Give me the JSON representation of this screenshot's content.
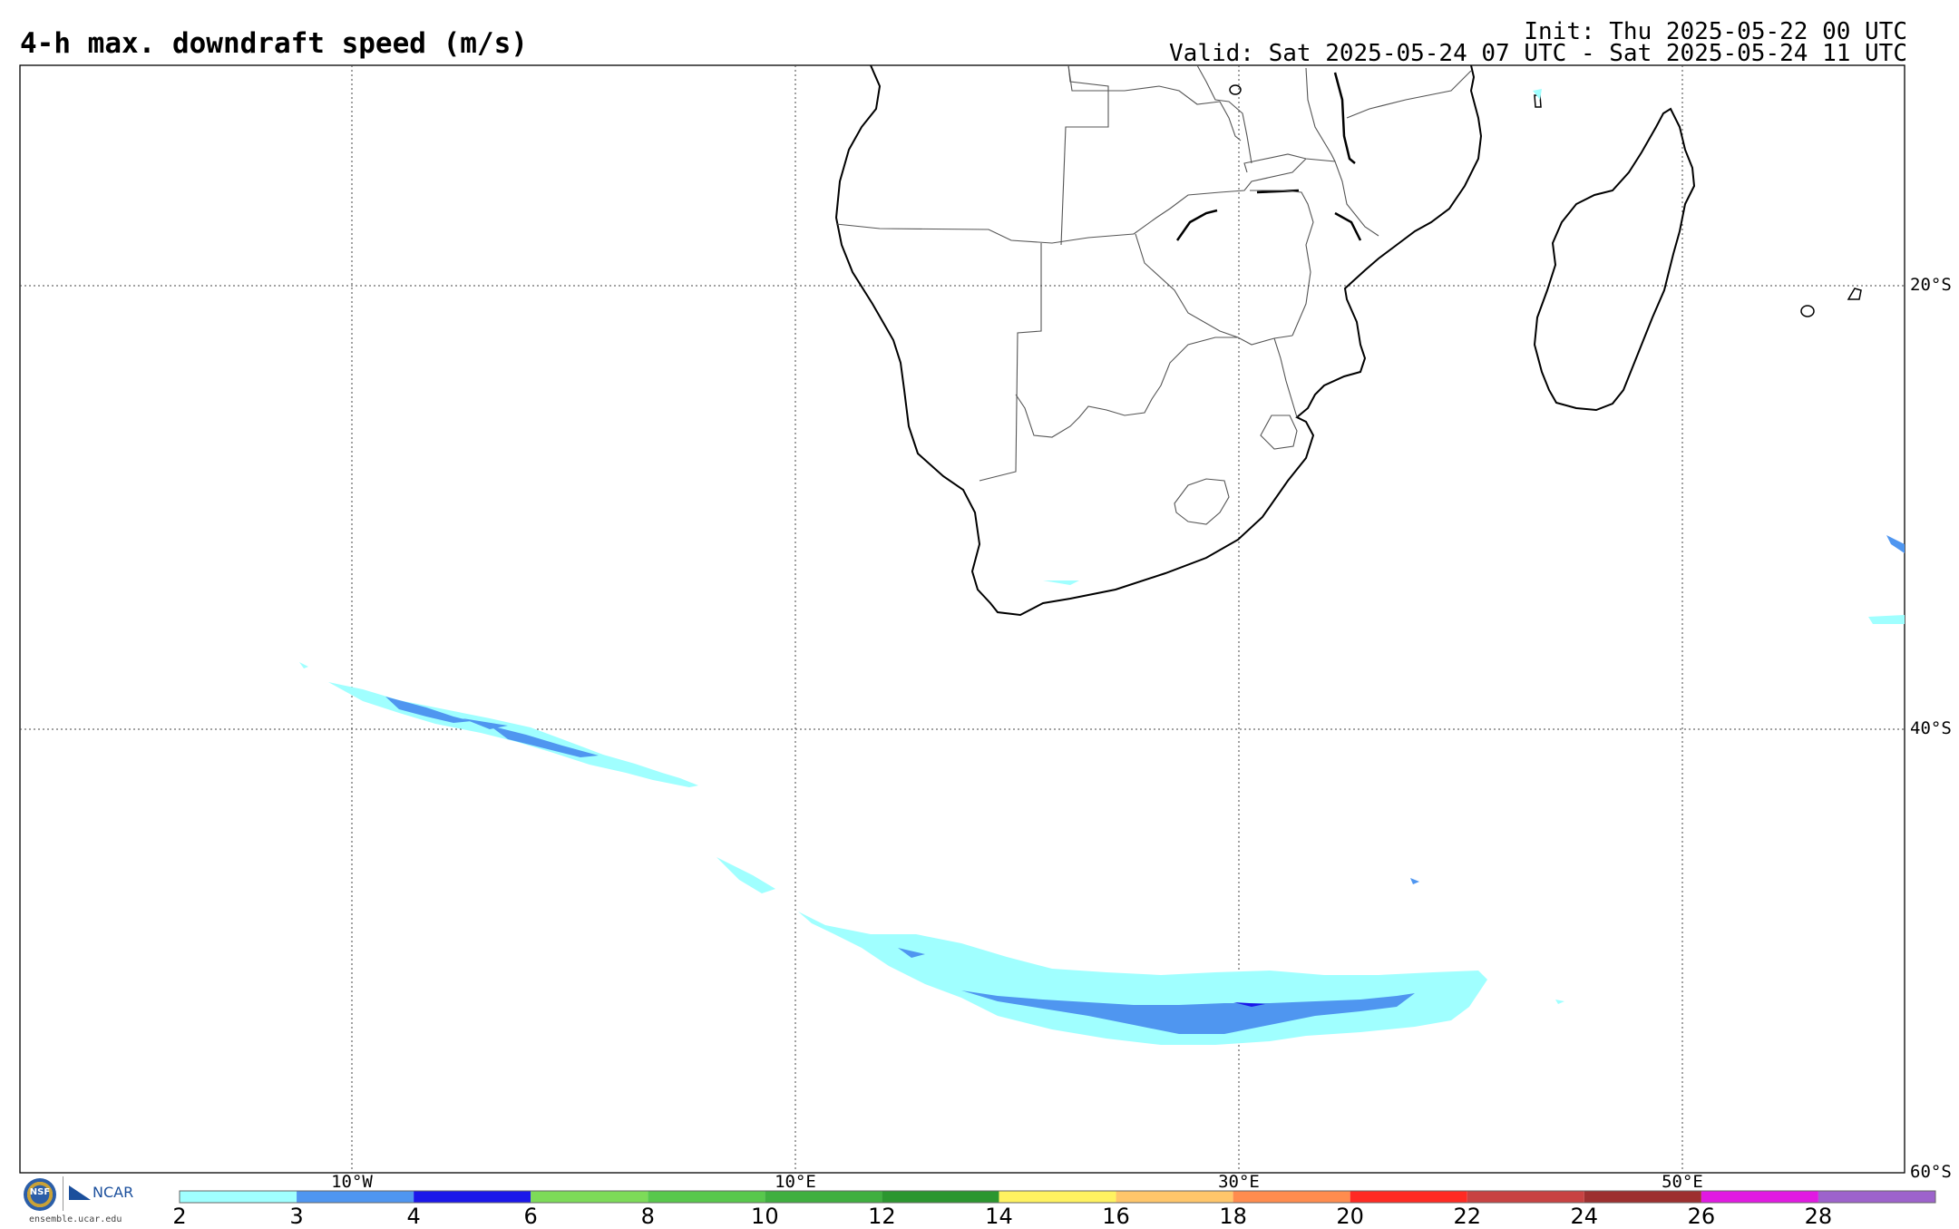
{
  "header": {
    "title": "4-h max. downdraft speed (m/s)",
    "init": "Init: Thu 2025-05-22 00 UTC",
    "valid": "Valid: Sat 2025-05-24 07 UTC - Sat 2025-05-24 11 UTC"
  },
  "map": {
    "region": "Southern Africa and South Atlantic",
    "lat_labels": [
      "20°S",
      "40°S",
      "60°S"
    ],
    "lon_labels": [
      "10°W",
      "10°E",
      "30°E",
      "50°E"
    ],
    "coastline_color": "#000000",
    "border_color": "#555555"
  },
  "colorbar": {
    "ticks": [
      "2",
      "3",
      "4",
      "6",
      "8",
      "10",
      "12",
      "14",
      "16",
      "18",
      "20",
      "22",
      "24",
      "26",
      "28"
    ],
    "colors": [
      "#a0ffff",
      "#4f96f0",
      "#1b17ea",
      "#7ddb58",
      "#58c84c",
      "#3faf3f",
      "#2b962f",
      "#fff260",
      "#ffc66a",
      "#ff8c4e",
      "#ff2a23",
      "#c84242",
      "#9d2f2f",
      "#e11ae2",
      "#9d63cc"
    ]
  },
  "footer": {
    "logo_seal": "NSF",
    "logo_org": "NCAR",
    "logo_url": "ensemble.ucar.edu"
  }
}
